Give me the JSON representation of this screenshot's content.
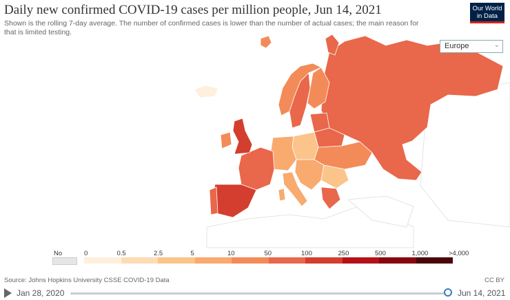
{
  "header": {
    "title": "Daily new confirmed COVID-19 cases per million people, Jun 14, 2021",
    "subtitle": "Shown is the rolling 7-day average. The number of confirmed cases is lower than the number of actual cases; the main reason for that is limited testing.",
    "logo_line1": "Our World",
    "logo_line2": "in Data"
  },
  "controls": {
    "region": "Europe"
  },
  "legend": {
    "no_data_label": "No data",
    "no_data_color": "#e6e6e6",
    "bins": [
      {
        "label": "0",
        "color": "#fef0dd"
      },
      {
        "label": "0.5",
        "color": "#fddcb3"
      },
      {
        "label": "2.5",
        "color": "#fbc48a"
      },
      {
        "label": "5",
        "color": "#f8aa6f"
      },
      {
        "label": "10",
        "color": "#f38b58"
      },
      {
        "label": "50",
        "color": "#e9674a"
      },
      {
        "label": "100",
        "color": "#d43e2e"
      },
      {
        "label": "250",
        "color": "#b51217"
      },
      {
        "label": "500",
        "color": "#85070f"
      },
      {
        "label": "1,000",
        "color": "#4a0508"
      },
      {
        "label": ">4,000",
        "color": "#1a0a05"
      }
    ]
  },
  "map": {
    "colors": {
      "russia": "#e9674a",
      "uk": "#d43e2e",
      "spain": "#d43e2e",
      "portugal": "#e9674a",
      "france": "#e9674a",
      "ireland": "#f38b58",
      "norway": "#f38b58",
      "sweden": "#e9674a",
      "finland": "#f38b58",
      "germany": "#f8aa6f",
      "poland": "#fbc48a",
      "ukraine": "#f38b58",
      "belarus": "#e9674a",
      "baltics": "#e9674a",
      "italy": "#f8aa6f",
      "balkans": "#f8aa6f",
      "romania": "#fbc48a",
      "greece": "#e9674a",
      "iceland": "#fef0dd",
      "other": "#ffffff"
    }
  },
  "footer": {
    "source": "Source: Johns Hopkins University CSSE COVID-19 Data",
    "license": "CC BY"
  },
  "timeline": {
    "start": "Jan 28, 2020",
    "end": "Jun 14, 2021"
  }
}
